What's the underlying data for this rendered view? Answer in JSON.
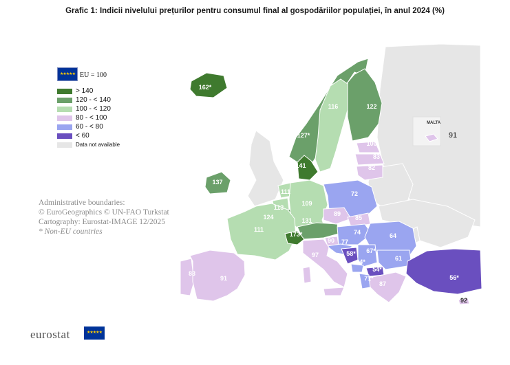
{
  "title": "Grafic 1: Indicii nivelului prețurilor pentru consumul final al gospodăriilor populației, în anul 2024 (%)",
  "legend": {
    "eu_label": "EU = 100",
    "eu_flag_icon": "eu-flag-icon",
    "classes": [
      {
        "label": "> 140",
        "color": "#3f7a2e"
      },
      {
        "label": "120 - < 140",
        "color": "#6ba06a"
      },
      {
        "label": "100 - < 120",
        "color": "#b5ddb1"
      },
      {
        "label": "80 - < 100",
        "color": "#dfc5ea"
      },
      {
        "label": "60 - < 80",
        "color": "#9aa5f0"
      },
      {
        "label": "< 60",
        "color": "#6a4fbf"
      },
      {
        "label": "Data not available",
        "color": "#e6e6e6"
      }
    ]
  },
  "admin_note": {
    "line1": "Administrative boundaries:",
    "line2": "© EuroGeographics © UN-FAO Turkstat",
    "line3": "Cartography: Eurostat-IMAGE 12/2025",
    "line4": "* Non-EU countries"
  },
  "malta_inset": {
    "label": "MALTA",
    "value": "91"
  },
  "footer": {
    "brand": "eurostat",
    "flag_icon": "eu-flag-icon"
  },
  "colors": {
    "sea": "#ffffff",
    "na": "#e6e6e6",
    "border": "#ffffff"
  },
  "countries": [
    {
      "name": "Iceland",
      "value": "162*",
      "cls": 0
    },
    {
      "name": "Norway",
      "value": "127*",
      "cls": 1
    },
    {
      "name": "Sweden",
      "value": "116",
      "cls": 2
    },
    {
      "name": "Finland",
      "value": "122",
      "cls": 1
    },
    {
      "name": "Estonia",
      "value": "100",
      "cls": 3
    },
    {
      "name": "Latvia",
      "value": "83",
      "cls": 3
    },
    {
      "name": "Lithuania",
      "value": "82",
      "cls": 3
    },
    {
      "name": "Denmark",
      "value": "141",
      "cls": 0
    },
    {
      "name": "Ireland",
      "value": "137",
      "cls": 1
    },
    {
      "name": "Netherlands",
      "value": "111",
      "cls": 2
    },
    {
      "name": "Belgium",
      "value": "113",
      "cls": 2
    },
    {
      "name": "Luxembourg",
      "value": "124",
      "cls": 1
    },
    {
      "name": "Germany",
      "value": "109",
      "cls": 2
    },
    {
      "name": "Poland",
      "value": "72",
      "cls": 4
    },
    {
      "name": "France",
      "value": "111",
      "cls": 2
    },
    {
      "name": "Austria",
      "value": "131",
      "cls": 1
    },
    {
      "name": "Czechia",
      "value": "89",
      "cls": 3
    },
    {
      "name": "Slovakia",
      "value": "85",
      "cls": 3
    },
    {
      "name": "Switzerland",
      "value": "173*",
      "cls": 0
    },
    {
      "name": "Slovenia",
      "value": "90",
      "cls": 3
    },
    {
      "name": "Hungary",
      "value": "74",
      "cls": 4
    },
    {
      "name": "Croatia",
      "value": "77",
      "cls": 4
    },
    {
      "name": "Romania",
      "value": "64",
      "cls": 4
    },
    {
      "name": "Italy",
      "value": "97",
      "cls": 3
    },
    {
      "name": "Bosnia and Herzegovina",
      "value": "58*",
      "cls": 5
    },
    {
      "name": "Serbia",
      "value": "67*",
      "cls": 4
    },
    {
      "name": "Montenegro",
      "value": "64*",
      "cls": 4
    },
    {
      "name": "North Macedonia",
      "value": "54*",
      "cls": 5
    },
    {
      "name": "Albania",
      "value": "71*",
      "cls": 4
    },
    {
      "name": "Bulgaria",
      "value": "61",
      "cls": 4
    },
    {
      "name": "Greece",
      "value": "87",
      "cls": 3
    },
    {
      "name": "Türkiye",
      "value": "56*",
      "cls": 5
    },
    {
      "name": "Portugal",
      "value": "83",
      "cls": 3
    },
    {
      "name": "Spain",
      "value": "91",
      "cls": 3
    },
    {
      "name": "Cyprus",
      "value": "92",
      "cls": 3
    },
    {
      "name": "Malta",
      "value": "91",
      "cls": 3
    }
  ]
}
